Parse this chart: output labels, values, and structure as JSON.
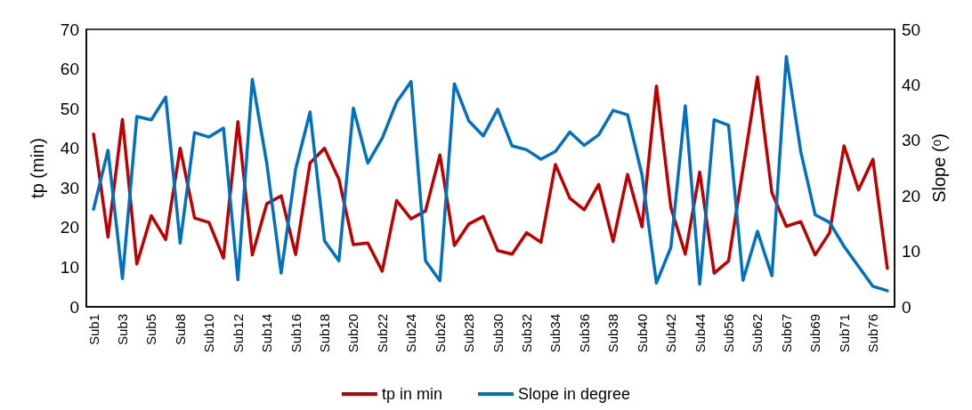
{
  "chart_data": {
    "type": "line",
    "xlabel": null,
    "ylabel": "tp (min)",
    "y2label": "Slope (ᵒ)",
    "categories": [
      "Sub1",
      null,
      "Sub3",
      null,
      "Sub5",
      null,
      "Sub8",
      null,
      "Sub10",
      null,
      "Sub12",
      null,
      "Sub14",
      null,
      "Sub16",
      null,
      "Sub18",
      null,
      "Sub20",
      null,
      "Sub22",
      null,
      "Sub24",
      null,
      "Sub26",
      null,
      "Sub28",
      null,
      "Sub30",
      null,
      "Sub32",
      null,
      "Sub34",
      null,
      "Sub36",
      null,
      "Sub38",
      null,
      "Sub40",
      null,
      "Sub42",
      null,
      "Sub44",
      null,
      "Sub56",
      null,
      "Sub62",
      null,
      "Sub67",
      null,
      "Sub69",
      null,
      "Sub71",
      null,
      "Sub76",
      null
    ],
    "series": [
      {
        "name": "tp in min",
        "color": "#c00000",
        "values": [
          43.6,
          17.6,
          47.3,
          10.8,
          23.0,
          17.0,
          40.0,
          22.4,
          21.3,
          12.3,
          46.7,
          13.1,
          26.0,
          28.0,
          13.2,
          36.3,
          40.0,
          32.2,
          15.7,
          16.1,
          9.0,
          26.8,
          22.2,
          24.2,
          38.3,
          15.5,
          20.9,
          22.8,
          14.2,
          13.3,
          18.7,
          16.3,
          35.9,
          27.4,
          24.5,
          30.9,
          16.5,
          33.4,
          20.2,
          55.7,
          25.1,
          13.3,
          34.0,
          8.5,
          11.6,
          34.8,
          58.0,
          28.8,
          20.3,
          21.5,
          13.1,
          18.7,
          40.6,
          29.5,
          37.2,
          9.7
        ]
      },
      {
        "name": "Slope in degree",
        "color": "#0070c0",
        "axis": "y2",
        "values": [
          17.6,
          28.2,
          5.1,
          34.3,
          33.7,
          37.8,
          11.5,
          31.4,
          30.6,
          32.2,
          4.9,
          41.0,
          25.9,
          6.1,
          24.8,
          35.1,
          11.9,
          8.3,
          35.8,
          25.9,
          30.4,
          36.9,
          40.6,
          8.3,
          4.7,
          40.2,
          33.5,
          30.8,
          35.6,
          29.0,
          28.3,
          26.6,
          28.0,
          31.5,
          29.1,
          31.0,
          35.4,
          34.6,
          23.8,
          4.3,
          10.7,
          36.2,
          4.1,
          33.7,
          32.7,
          4.8,
          13.6,
          5.6,
          45.1,
          28.0,
          16.6,
          15.2,
          10.9,
          7.3,
          3.7,
          2.9
        ]
      }
    ],
    "ylim": [
      0,
      70
    ],
    "yticks": [
      0,
      10,
      20,
      30,
      40,
      50,
      60,
      70
    ],
    "y2lim": [
      0,
      50
    ],
    "y2ticks": [
      0,
      10,
      20,
      30,
      40,
      50
    ],
    "grid": false,
    "legend": "bottom",
    "marker": "none",
    "line_style": "solid"
  }
}
